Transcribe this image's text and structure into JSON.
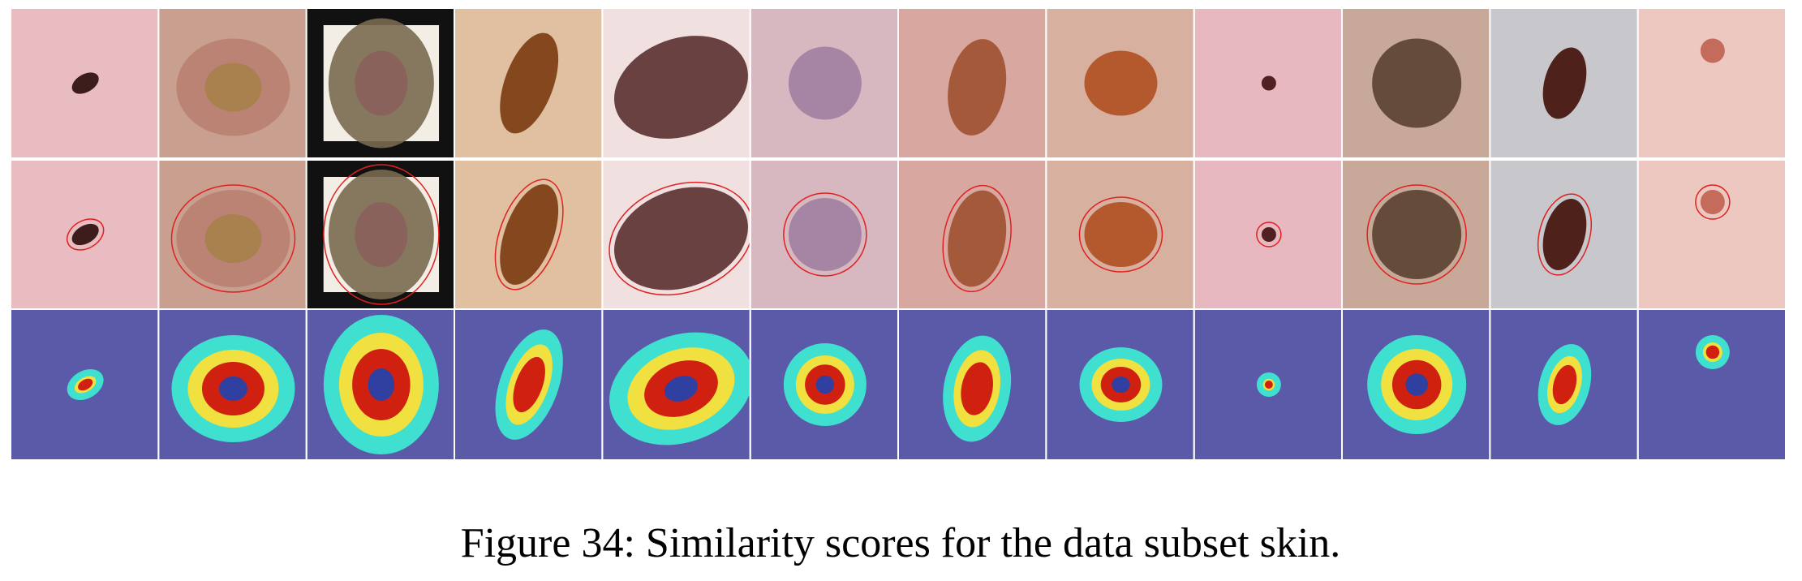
{
  "figure": {
    "caption": "Figure 34: Similarity scores for the data subset skin."
  }
}
